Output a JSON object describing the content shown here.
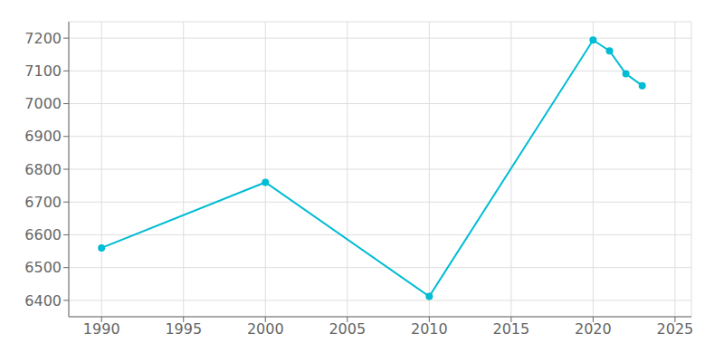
{
  "chart_data": {
    "type": "line",
    "x": [
      1990,
      2000,
      2010,
      2020,
      2021,
      2022,
      2023
    ],
    "values": [
      6560,
      6760,
      6412,
      7194,
      7161,
      7091,
      7055
    ],
    "color": "#00BCD4",
    "marker": "circle",
    "xlim": [
      1988,
      2026
    ],
    "ylim": [
      6350,
      7250
    ],
    "xticks": [
      1990,
      1995,
      2000,
      2005,
      2010,
      2015,
      2020,
      2025
    ],
    "yticks": [
      6400,
      6500,
      6600,
      6700,
      6800,
      6900,
      7000,
      7100,
      7200
    ],
    "grid": true
  }
}
